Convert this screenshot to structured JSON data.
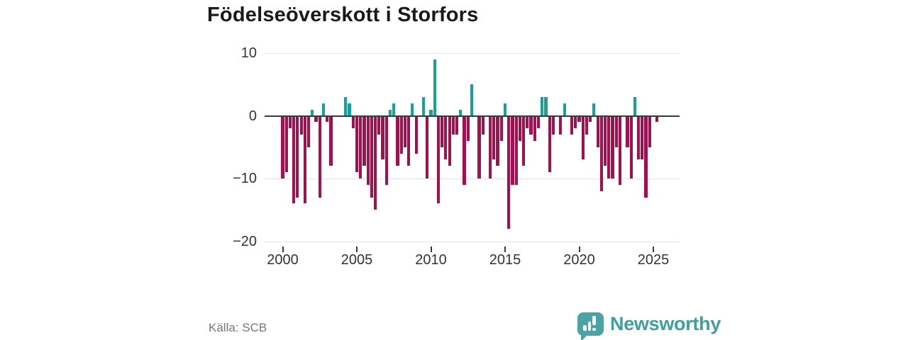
{
  "title": "Födelseöverskott i Storfors",
  "source_label": "Källa: SCB",
  "brand": {
    "wordmark": "Newsworthy"
  },
  "colors": {
    "positive": "#14a29e",
    "negative": "#a31050",
    "grid": "#e3e3e3",
    "zero_line": "#3a3a3a",
    "axis_text": "#333333",
    "muted_text": "#75767a",
    "brand_teal": "#4ba4a3"
  },
  "chart_data": {
    "type": "bar",
    "title": "Födelseöverskott i Storfors",
    "frequency": "quarterly",
    "x_start_year": 2000,
    "x_tick_labels": [
      "2000",
      "2005",
      "2010",
      "2015",
      "2020",
      "2025"
    ],
    "y_ticks": [
      10,
      0,
      -10,
      -20
    ],
    "ylim": [
      -20,
      11
    ],
    "grid": true,
    "legend": false,
    "positive_color_meaning": "birth surplus (positive)",
    "negative_color_meaning": "birth deficit (negative)",
    "values": [
      -10,
      -9,
      -2,
      -14,
      -13,
      -3,
      -14,
      -5,
      1,
      -1,
      -13,
      2,
      -1,
      -8,
      0,
      0,
      0,
      3,
      2,
      -2,
      -9,
      -10,
      -8,
      -11,
      -13,
      -15,
      -3,
      -7,
      -11,
      1,
      2,
      -8,
      -6,
      -5,
      -8,
      2,
      -6,
      0,
      3,
      -10,
      1,
      9,
      -14,
      -5,
      -7,
      -8,
      -3,
      -3,
      1,
      -11,
      -4,
      5,
      0,
      -10,
      -3,
      0,
      -10,
      -7,
      -8,
      -4,
      2,
      -18,
      -11,
      -11,
      -4,
      -8,
      -2,
      -3,
      -4,
      -2,
      3,
      3,
      -9,
      -3,
      0,
      -3,
      2,
      0,
      -3,
      -2,
      -1,
      -7,
      -3,
      -1,
      2,
      -5,
      -12,
      -8,
      -10,
      -10,
      -5,
      -11,
      0,
      -5,
      -10,
      3,
      -7,
      -7,
      -13,
      -5,
      0,
      -1
    ]
  }
}
